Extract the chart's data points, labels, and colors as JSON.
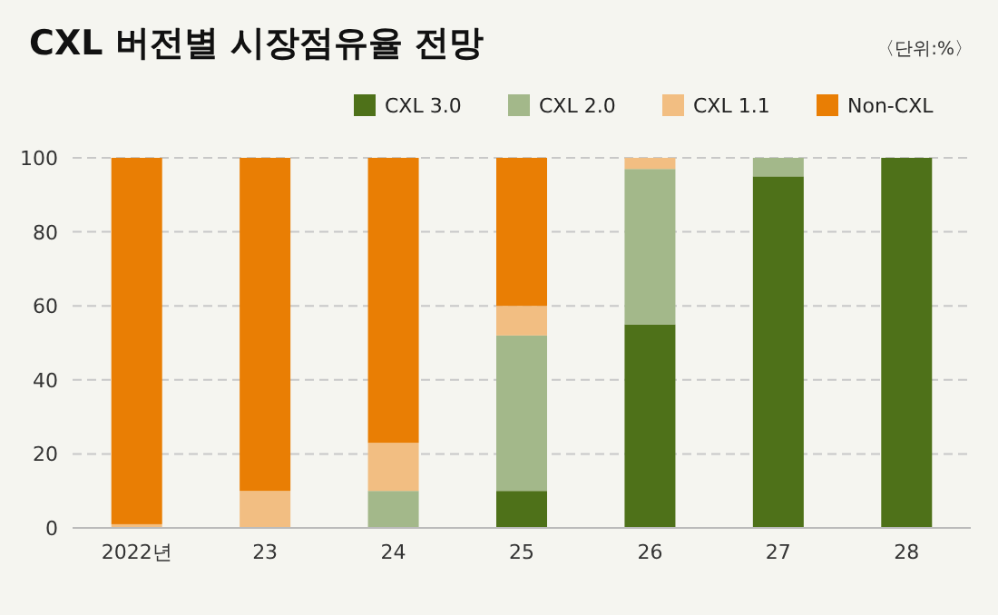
{
  "chart_data": {
    "type": "bar",
    "stacked": true,
    "title": "CXL 버전별 시장점유율 전망",
    "annotations": [
      "〈단위:%〉"
    ],
    "categories": [
      "2022년",
      "23",
      "24",
      "25",
      "26",
      "27",
      "28"
    ],
    "series": [
      {
        "name": "CXL 3.0",
        "color": "#4e7119",
        "values": [
          0,
          0,
          0,
          10,
          55,
          95,
          100
        ]
      },
      {
        "name": "CXL 2.0",
        "color": "#a3b88a",
        "values": [
          0,
          0,
          10,
          42,
          42,
          5,
          0
        ]
      },
      {
        "name": "CXL 1.1",
        "color": "#f2be82",
        "values": [
          1,
          10,
          13,
          8,
          3,
          0,
          0
        ]
      },
      {
        "name": "Non-CXL",
        "color": "#e97e04",
        "values": [
          99,
          90,
          77,
          40,
          0,
          0,
          0
        ]
      }
    ],
    "ylim": [
      0,
      100
    ],
    "yticks": [
      0,
      20,
      40,
      60,
      80,
      100
    ],
    "grid": "y",
    "legend": "top right"
  }
}
